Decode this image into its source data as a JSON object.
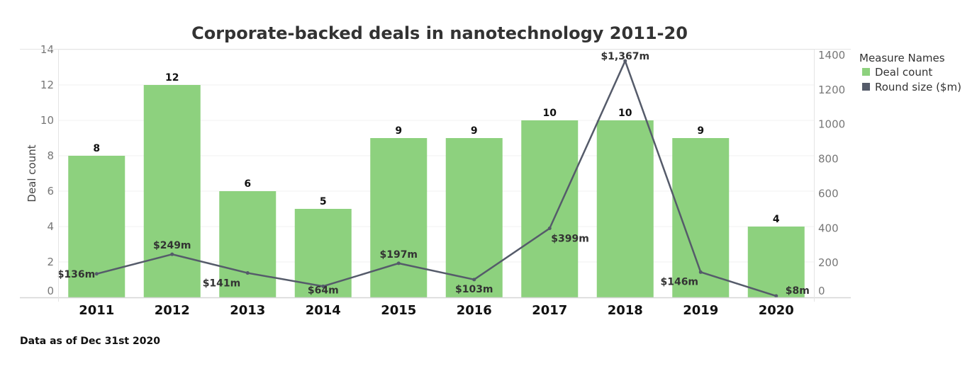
{
  "chart_data": {
    "type": "bar",
    "title": "Corporate-backed deals in nanotechnology 2011-20",
    "categories": [
      "2011",
      "2012",
      "2013",
      "2014",
      "2015",
      "2016",
      "2017",
      "2018",
      "2019",
      "2020"
    ],
    "series": [
      {
        "name": "Deal count",
        "type": "bar",
        "axis": "left",
        "color": "#8dd17e",
        "values": [
          8,
          12,
          6,
          5,
          9,
          9,
          10,
          10,
          9,
          4
        ],
        "labels": [
          "8",
          "12",
          "6",
          "5",
          "9",
          "9",
          "10",
          "10",
          "9",
          "4"
        ]
      },
      {
        "name": "Round size ($m)",
        "type": "line",
        "axis": "right",
        "color": "#555b6a",
        "values": [
          136,
          249,
          141,
          64,
          197,
          103,
          399,
          1367,
          146,
          8
        ],
        "labels": [
          "$136m",
          "$249m",
          "$141m",
          "$64m",
          "$197m",
          "$103m",
          "$399m",
          "$1,367m",
          "$146m",
          "$8m"
        ]
      }
    ],
    "xlabel": "",
    "ylabel": "Deal count",
    "ylabel_right": "",
    "ylim": [
      0,
      14
    ],
    "ylim_right": [
      0,
      1400
    ],
    "yticks": [
      0,
      2,
      4,
      6,
      8,
      10,
      12,
      14
    ],
    "yticks_right": [
      0,
      200,
      400,
      600,
      800,
      1000,
      1200,
      1400
    ],
    "grid": true,
    "legend": {
      "title": "Measure Names",
      "position": "top-right",
      "entries": [
        "Deal count",
        "Round size ($m)"
      ]
    }
  },
  "footnote": "Data as of Dec 31st 2020"
}
